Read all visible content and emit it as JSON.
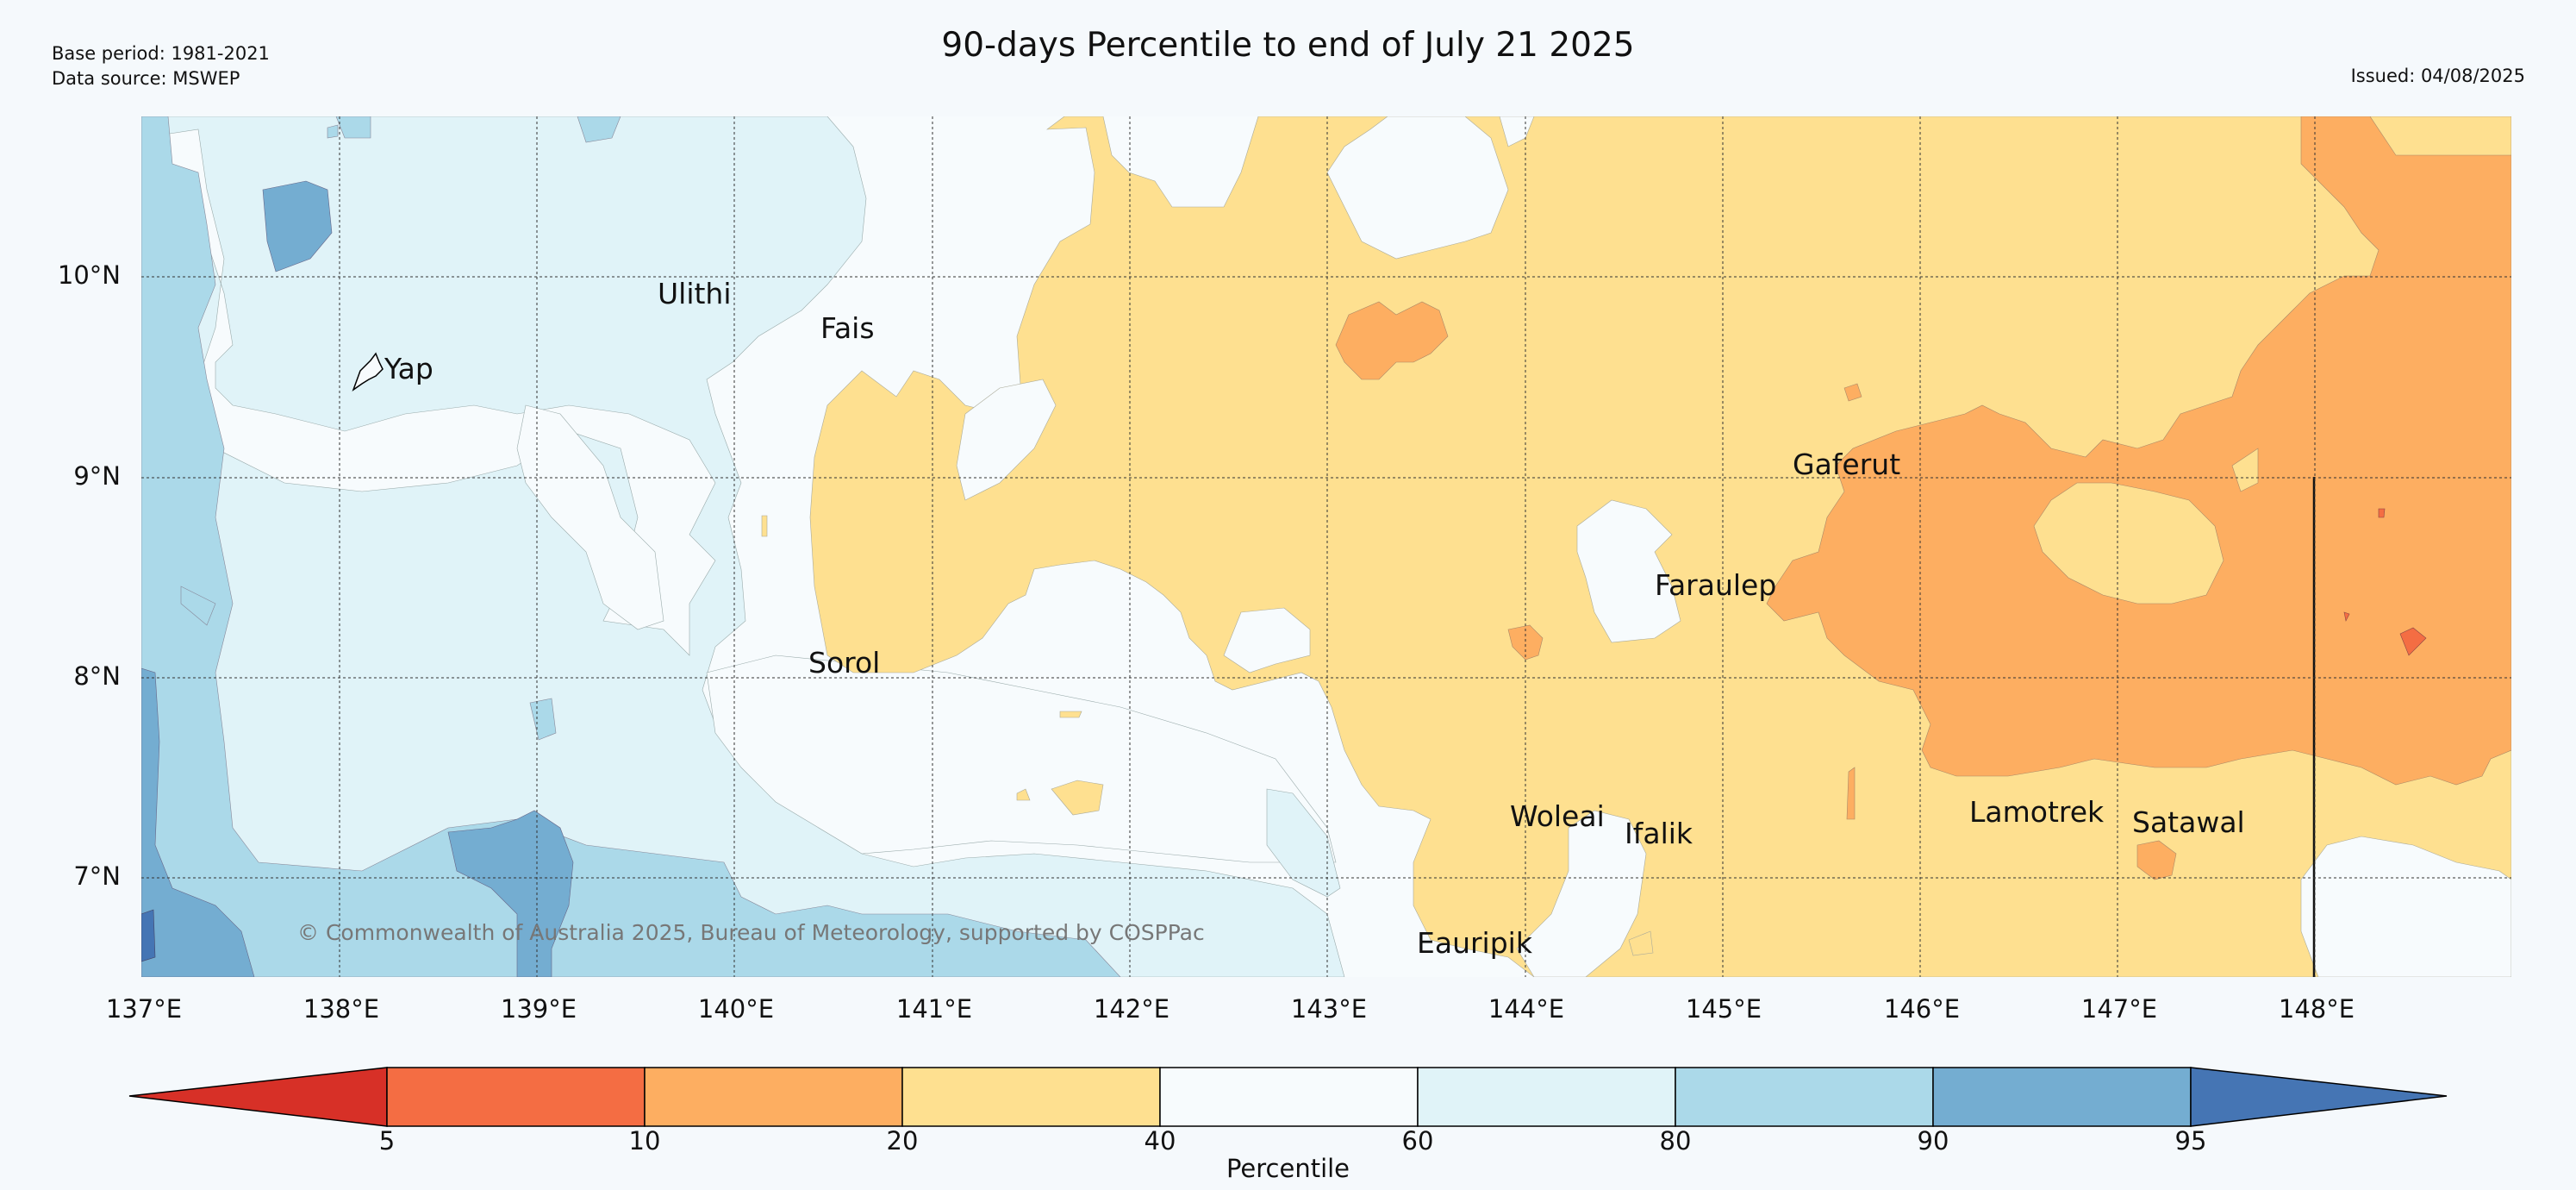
{
  "header": {
    "base_period": "Base period: 1981-2021",
    "data_source": "Data source: MSWEP",
    "title": "90-days Percentile to end of July 21 2025",
    "issued": "Issued: 04/08/2025"
  },
  "map": {
    "lon_labels": [
      "137°E",
      "138°E",
      "139°E",
      "140°E",
      "141°E",
      "142°E",
      "143°E",
      "144°E",
      "145°E",
      "146°E",
      "147°E",
      "148°E"
    ],
    "lat_labels": [
      "10°N",
      "9°N",
      "8°N",
      "7°N"
    ],
    "islands": [
      {
        "name": "Ulithi"
      },
      {
        "name": "Fais"
      },
      {
        "name": "Yap"
      },
      {
        "name": "Gaferut"
      },
      {
        "name": "Faraulep"
      },
      {
        "name": "Sorol"
      },
      {
        "name": "Woleai"
      },
      {
        "name": "Ifalik"
      },
      {
        "name": "Lamotrek"
      },
      {
        "name": "Satawal"
      },
      {
        "name": "Eauripik"
      }
    ],
    "copyright": "© Commonwealth of Australia 2025, Bureau of Meteorology, supported by COSPPac",
    "colors": {
      "lt5": "#d73027",
      "p5_10": "#f46d43",
      "p10_20": "#fdae61",
      "p20_40": "#fee090",
      "p40_60": "#f7fbfd",
      "p60_80": "#e0f3f8",
      "p80_90": "#abd9e9",
      "p90_95": "#74add1",
      "gt95": "#4575b4"
    }
  },
  "colorbar": {
    "ticks": [
      "5",
      "10",
      "20",
      "40",
      "60",
      "80",
      "90",
      "95"
    ],
    "label": "Percentile"
  }
}
